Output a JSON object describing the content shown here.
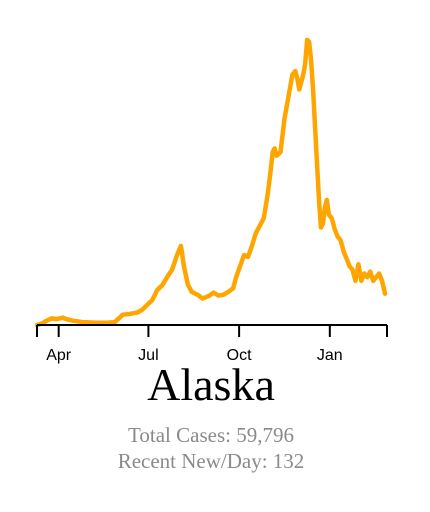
{
  "colors": {
    "line": "#FFA500",
    "axis": "#000000",
    "stats_text": "#8a8a8a"
  },
  "title": "Alaska",
  "stats": {
    "total_cases": "Total Cases: 59,796",
    "recent_new_per_day": "Recent New/Day: 132"
  },
  "chart_data": {
    "type": "line",
    "title": "Alaska",
    "xlabel": "",
    "ylabel": "",
    "x_ticks": [
      {
        "label": "Apr",
        "date": "2020-04-01"
      },
      {
        "label": "Jul",
        "date": "2020-07-01"
      },
      {
        "label": "Oct",
        "date": "2020-10-01"
      },
      {
        "label": "Jan",
        "date": "2021-01-01"
      }
    ],
    "xlim": [
      "2020-03-10",
      "2021-02-28"
    ],
    "ylim": [
      0,
      780
    ],
    "grid": false,
    "series": [
      {
        "points": [
          [
            "2020-03-10",
            0
          ],
          [
            "2020-03-15",
            4
          ],
          [
            "2020-03-20",
            12
          ],
          [
            "2020-03-25",
            18
          ],
          [
            "2020-03-30",
            16
          ],
          [
            "2020-04-05",
            20
          ],
          [
            "2020-04-10",
            15
          ],
          [
            "2020-04-15",
            12
          ],
          [
            "2020-04-20",
            10
          ],
          [
            "2020-04-25",
            8
          ],
          [
            "2020-05-01",
            7
          ],
          [
            "2020-05-10",
            6
          ],
          [
            "2020-05-20",
            6
          ],
          [
            "2020-05-28",
            8
          ],
          [
            "2020-06-05",
            28
          ],
          [
            "2020-06-12",
            30
          ],
          [
            "2020-06-20",
            34
          ],
          [
            "2020-06-25",
            42
          ],
          [
            "2020-07-01",
            58
          ],
          [
            "2020-07-05",
            68
          ],
          [
            "2020-07-10",
            95
          ],
          [
            "2020-07-15",
            108
          ],
          [
            "2020-07-20",
            130
          ],
          [
            "2020-07-25",
            150
          ],
          [
            "2020-07-30",
            190
          ],
          [
            "2020-08-03",
            215
          ],
          [
            "2020-08-06",
            160
          ],
          [
            "2020-08-10",
            110
          ],
          [
            "2020-08-14",
            90
          ],
          [
            "2020-08-20",
            82
          ],
          [
            "2020-08-25",
            72
          ],
          [
            "2020-09-01",
            80
          ],
          [
            "2020-09-05",
            88
          ],
          [
            "2020-09-10",
            80
          ],
          [
            "2020-09-15",
            82
          ],
          [
            "2020-09-20",
            90
          ],
          [
            "2020-09-25",
            100
          ],
          [
            "2020-09-28",
            130
          ],
          [
            "2020-10-02",
            160
          ],
          [
            "2020-10-06",
            190
          ],
          [
            "2020-10-10",
            185
          ],
          [
            "2020-10-14",
            215
          ],
          [
            "2020-10-18",
            250
          ],
          [
            "2020-10-22",
            270
          ],
          [
            "2020-10-26",
            290
          ],
          [
            "2020-10-30",
            355
          ],
          [
            "2020-11-02",
            420
          ],
          [
            "2020-11-04",
            470
          ],
          [
            "2020-11-06",
            480
          ],
          [
            "2020-11-08",
            460
          ],
          [
            "2020-11-12",
            470
          ],
          [
            "2020-11-16",
            560
          ],
          [
            "2020-11-20",
            620
          ],
          [
            "2020-11-24",
            680
          ],
          [
            "2020-11-27",
            690
          ],
          [
            "2020-11-29",
            670
          ],
          [
            "2020-12-01",
            640
          ],
          [
            "2020-12-03",
            660
          ],
          [
            "2020-12-05",
            680
          ],
          [
            "2020-12-07",
            710
          ],
          [
            "2020-12-09",
            775
          ],
          [
            "2020-12-11",
            770
          ],
          [
            "2020-12-13",
            720
          ],
          [
            "2020-12-15",
            640
          ],
          [
            "2020-12-17",
            540
          ],
          [
            "2020-12-19",
            440
          ],
          [
            "2020-12-21",
            340
          ],
          [
            "2020-12-23",
            265
          ],
          [
            "2020-12-25",
            275
          ],
          [
            "2020-12-27",
            320
          ],
          [
            "2020-12-29",
            340
          ],
          [
            "2020-12-31",
            300
          ],
          [
            "2021-01-03",
            290
          ],
          [
            "2021-01-06",
            260
          ],
          [
            "2021-01-09",
            240
          ],
          [
            "2021-01-12",
            230
          ],
          [
            "2021-01-15",
            200
          ],
          [
            "2021-01-18",
            180
          ],
          [
            "2021-01-21",
            160
          ],
          [
            "2021-01-24",
            150
          ],
          [
            "2021-01-27",
            120
          ],
          [
            "2021-01-30",
            165
          ],
          [
            "2021-02-02",
            120
          ],
          [
            "2021-02-05",
            140
          ],
          [
            "2021-02-08",
            130
          ],
          [
            "2021-02-11",
            145
          ],
          [
            "2021-02-14",
            120
          ],
          [
            "2021-02-17",
            130
          ],
          [
            "2021-02-20",
            140
          ],
          [
            "2021-02-23",
            120
          ],
          [
            "2021-02-26",
            85
          ]
        ]
      }
    ]
  }
}
